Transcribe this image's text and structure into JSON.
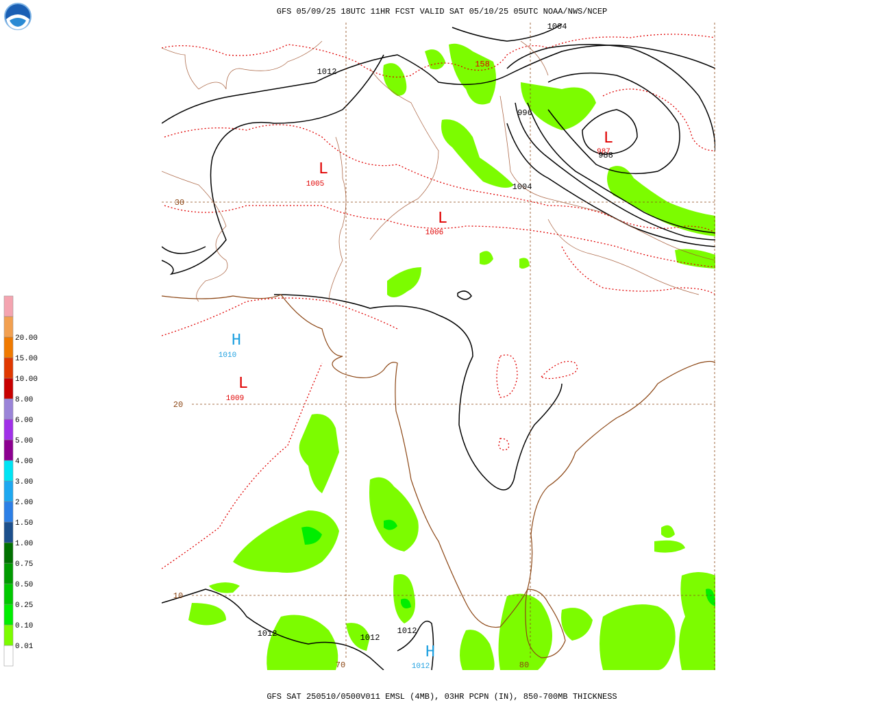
{
  "header": {
    "title": "GFS 05/09/25 18UTC 11HR FCST VALID SAT 05/10/25 05UTC NOAA/NWS/NCEP",
    "footer": "GFS SAT 250510/0500V011 EMSL (4MB), 03HR PCPN (IN), 850-700MB THICKNESS"
  },
  "legend": {
    "labels": [
      "0.01",
      "0.10",
      "0.25",
      "0.50",
      "0.75",
      "1.00",
      "1.50",
      "2.00",
      "3.00",
      "4.00",
      "5.00",
      "6.00",
      "8.00",
      "10.00",
      "15.00",
      "20.00"
    ],
    "colors": [
      "#ffffff",
      "#7cfc00",
      "#00ee00",
      "#00c800",
      "#009a00",
      "#007000",
      "#1c4f8c",
      "#2c7fe6",
      "#1ea8f0",
      "#00e4f4",
      "#8c0090",
      "#a030e8",
      "#9a84d8",
      "#c80000",
      "#e03800",
      "#f07a00",
      "#f2a050",
      "#f4a4b0"
    ]
  },
  "map": {
    "labels": [
      {
        "text": "1004",
        "color": "#000000"
      },
      {
        "text": "1012",
        "color": "#000000"
      },
      {
        "text": "158",
        "color": "#e00000"
      },
      {
        "text": "996",
        "color": "#000000"
      },
      {
        "text": "L",
        "color": "#e00000"
      },
      {
        "text": "987",
        "color": "#e00000"
      },
      {
        "text": "988",
        "color": "#000000"
      },
      {
        "text": "1004",
        "color": "#000000"
      },
      {
        "text": "L",
        "color": "#e00000"
      },
      {
        "text": "1005",
        "color": "#e00000"
      },
      {
        "text": "L",
        "color": "#e00000"
      },
      {
        "text": "1006",
        "color": "#e00000"
      },
      {
        "text": "H",
        "color": "#1ea0e0"
      },
      {
        "text": "1010",
        "color": "#1ea0e0"
      },
      {
        "text": "L",
        "color": "#e00000"
      },
      {
        "text": "1009",
        "color": "#e00000"
      },
      {
        "text": "1012",
        "color": "#000000"
      },
      {
        "text": "1012",
        "color": "#000000"
      },
      {
        "text": "1012",
        "color": "#000000"
      },
      {
        "text": "H",
        "color": "#1ea0e0"
      },
      {
        "text": "1012",
        "color": "#1ea0e0"
      },
      {
        "text": "30",
        "color": "#8b4513"
      },
      {
        "text": "20",
        "color": "#8b4513"
      },
      {
        "text": "10",
        "color": "#8b4513"
      },
      {
        "text": "70",
        "color": "#8b4513"
      },
      {
        "text": "80",
        "color": "#8b4513"
      }
    ]
  }
}
